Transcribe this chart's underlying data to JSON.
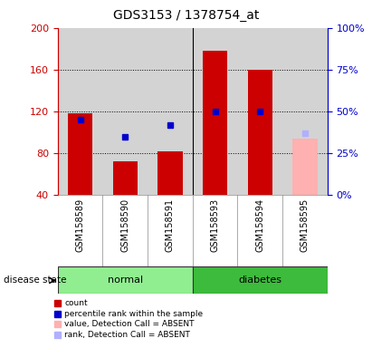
{
  "title": "GDS3153 / 1378754_at",
  "samples": [
    "GSM158589",
    "GSM158590",
    "GSM158591",
    "GSM158593",
    "GSM158594",
    "GSM158595"
  ],
  "ylim_left": [
    40,
    200
  ],
  "ylim_right": [
    0,
    100
  ],
  "yticks_left": [
    40,
    80,
    120,
    160,
    200
  ],
  "yticks_right": [
    0,
    25,
    50,
    75,
    100
  ],
  "left_axis_color": "#cc0000",
  "right_axis_color": "#0000cc",
  "count_values": [
    118,
    72,
    82,
    178,
    160,
    null
  ],
  "count_absent": [
    null,
    null,
    null,
    null,
    null,
    94
  ],
  "percentile_values": [
    45,
    35,
    42,
    50,
    50,
    null
  ],
  "percentile_absent": [
    null,
    null,
    null,
    null,
    null,
    37
  ],
  "count_color": "#cc0000",
  "percentile_color": "#0000cc",
  "count_absent_color": "#ffb0b0",
  "percentile_absent_color": "#b0b0ff",
  "plot_bg_color": "#d3d3d3",
  "group_color_normal": "#90ee90",
  "group_color_diabetes": "#3dbb3d",
  "legend_items": [
    {
      "label": "count",
      "color": "#cc0000"
    },
    {
      "label": "percentile rank within the sample",
      "color": "#0000cc"
    },
    {
      "label": "value, Detection Call = ABSENT",
      "color": "#ffb0b0"
    },
    {
      "label": "rank, Detection Call = ABSENT",
      "color": "#b0b0ff"
    }
  ]
}
